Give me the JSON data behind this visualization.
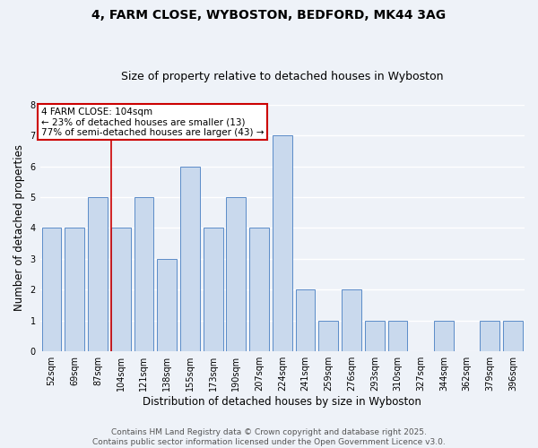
{
  "title1": "4, FARM CLOSE, WYBOSTON, BEDFORD, MK44 3AG",
  "title2": "Size of property relative to detached houses in Wyboston",
  "xlabel": "Distribution of detached houses by size in Wyboston",
  "ylabel": "Number of detached properties",
  "categories": [
    "52sqm",
    "69sqm",
    "87sqm",
    "104sqm",
    "121sqm",
    "138sqm",
    "155sqm",
    "173sqm",
    "190sqm",
    "207sqm",
    "224sqm",
    "241sqm",
    "259sqm",
    "276sqm",
    "293sqm",
    "310sqm",
    "327sqm",
    "344sqm",
    "362sqm",
    "379sqm",
    "396sqm"
  ],
  "values": [
    4,
    4,
    5,
    4,
    5,
    3,
    6,
    4,
    5,
    4,
    7,
    2,
    1,
    2,
    1,
    1,
    0,
    1,
    0,
    1,
    1
  ],
  "bar_color": "#c9d9ed",
  "bar_edge_color": "#5b8cc8",
  "highlight_index": 3,
  "highlight_line_color": "#cc0000",
  "annotation_box_color": "#ffffff",
  "annotation_box_edge": "#cc0000",
  "annotation_title": "4 FARM CLOSE: 104sqm",
  "annotation_line1": "← 23% of detached houses are smaller (13)",
  "annotation_line2": "77% of semi-detached houses are larger (43) →",
  "ylim": [
    0,
    8
  ],
  "yticks": [
    0,
    1,
    2,
    3,
    4,
    5,
    6,
    7,
    8
  ],
  "footer1": "Contains HM Land Registry data © Crown copyright and database right 2025.",
  "footer2": "Contains public sector information licensed under the Open Government Licence v3.0.",
  "bg_color": "#eef2f8",
  "plot_bg_color": "#eef2f8",
  "grid_color": "#ffffff",
  "title_fontsize": 10,
  "subtitle_fontsize": 9,
  "axis_label_fontsize": 8.5,
  "tick_fontsize": 7,
  "footer_fontsize": 6.5,
  "annotation_fontsize": 7.5
}
